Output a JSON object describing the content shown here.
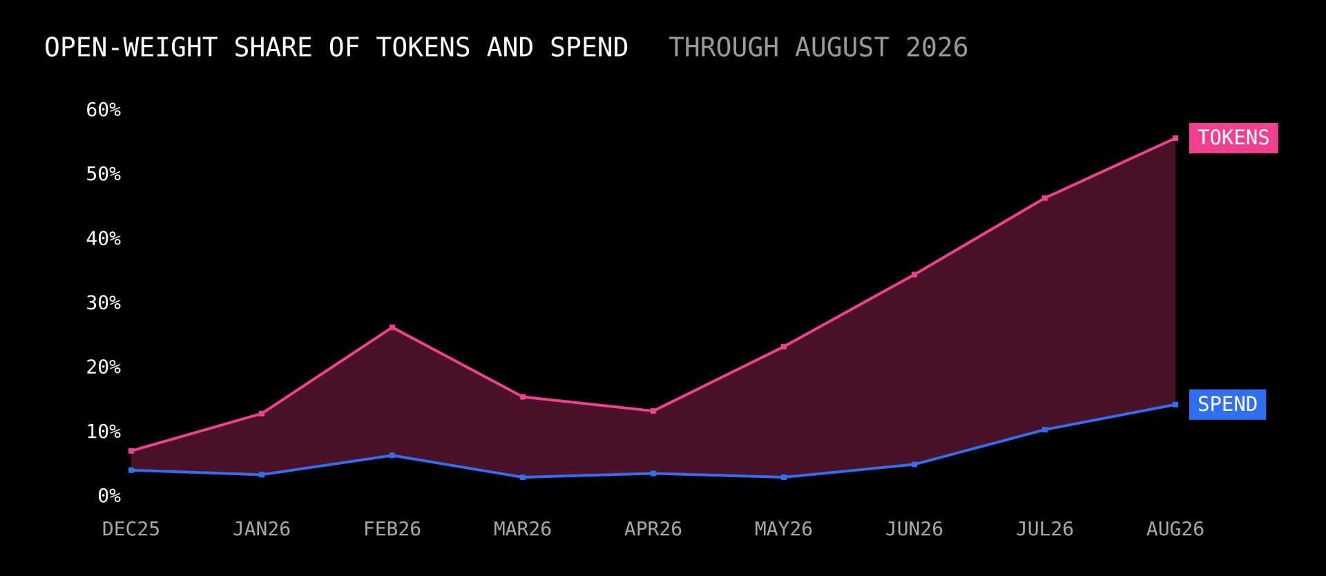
{
  "chart_data": {
    "type": "line",
    "title": "OPEN-WEIGHT SHARE OF TOKENS AND SPEND",
    "subtitle": "THROUGH AUGUST 2026",
    "categories": [
      "DEC25",
      "JAN26",
      "FEB26",
      "MAR26",
      "APR26",
      "MAY26",
      "JUN26",
      "JUL26",
      "AUG26"
    ],
    "series": [
      {
        "name": "TOKENS",
        "color": "#f0408f",
        "values": [
          7.1,
          12.9,
          26.3,
          15.5,
          13.3,
          23.3,
          34.5,
          46.4,
          55.7
        ]
      },
      {
        "name": "SPEND",
        "color": "#2f6ff0",
        "values": [
          4.1,
          3.4,
          6.4,
          3.0,
          3.6,
          3.0,
          5.0,
          10.4,
          14.3
        ]
      }
    ],
    "fill_between_color": "#4a1229",
    "ylim": [
      0,
      60
    ],
    "yticks": [
      {
        "value": 0,
        "label": "0%"
      },
      {
        "value": 10,
        "label": "10%"
      },
      {
        "value": 20,
        "label": "20%"
      },
      {
        "value": 30,
        "label": "30%"
      },
      {
        "value": 40,
        "label": "40%"
      },
      {
        "value": 50,
        "label": "50%"
      },
      {
        "value": 60,
        "label": "60%"
      }
    ],
    "legend": "end-of-line"
  }
}
